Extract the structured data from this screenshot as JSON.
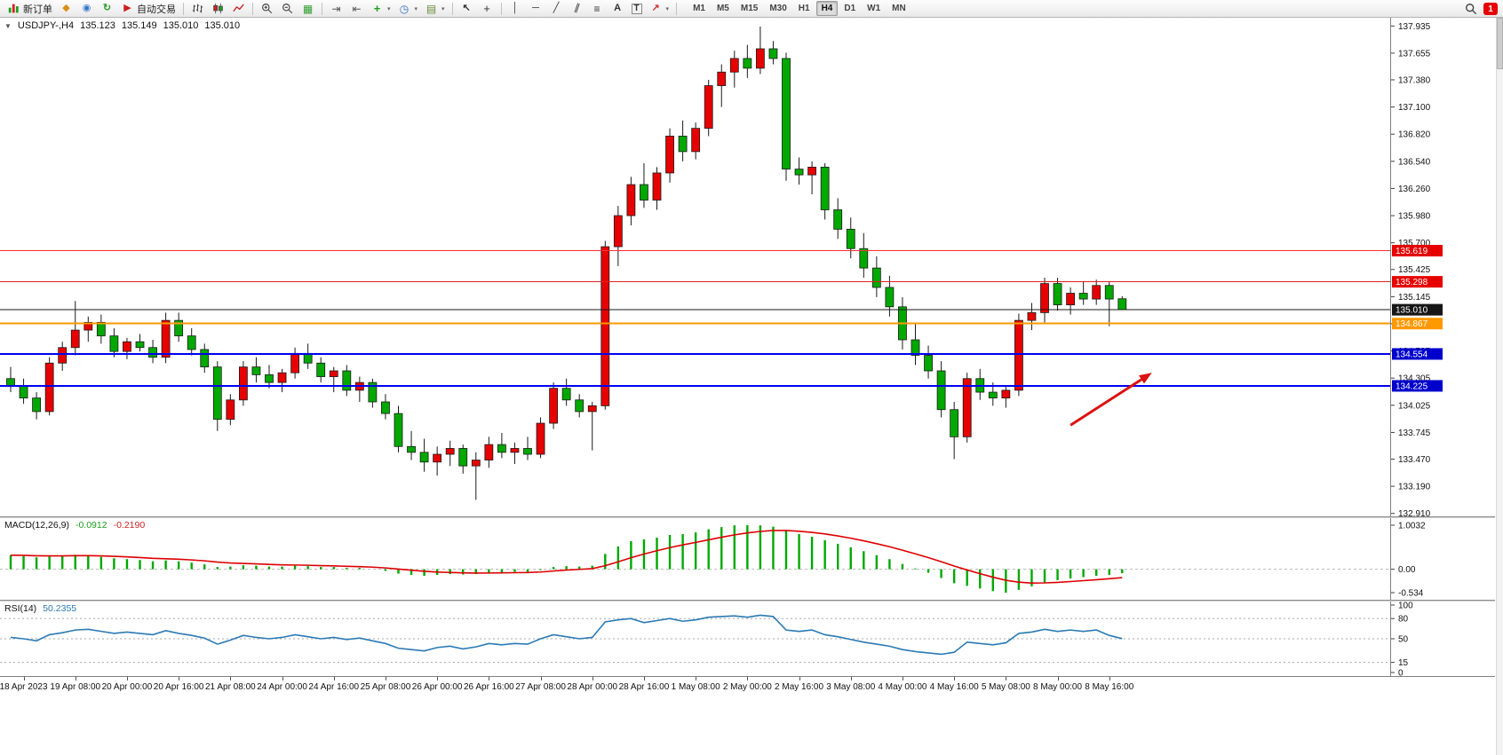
{
  "toolbar": {
    "items": [
      {
        "type": "button",
        "name": "new-order-button",
        "icon": "new-order-icon",
        "label": "新订单"
      },
      {
        "type": "button",
        "name": "metaeditor-button",
        "icon": "tools-icon"
      },
      {
        "type": "button",
        "name": "market-watch-button",
        "icon": "globe-icon"
      },
      {
        "type": "button",
        "name": "refresh-button",
        "icon": "refresh-icon"
      },
      {
        "type": "button",
        "name": "autotrading-button",
        "icon": "play-icon",
        "label": "自动交易"
      },
      {
        "type": "sep"
      },
      {
        "type": "button",
        "name": "bar-chart-button",
        "icon": "bars-icon"
      },
      {
        "type": "button",
        "name": "candle-chart-button",
        "icon": "candles-icon"
      },
      {
        "type": "button",
        "name": "line-chart-button",
        "icon": "linechart-icon"
      },
      {
        "type": "sep"
      },
      {
        "type": "button",
        "name": "zoom-in-button",
        "icon": "zoom-in-icon"
      },
      {
        "type": "button",
        "name": "zoom-out-button",
        "icon": "zoom-out-icon"
      },
      {
        "type": "button",
        "name": "tile-windows-button",
        "icon": "grid-icon"
      },
      {
        "type": "sep"
      },
      {
        "type": "button",
        "name": "autoscroll-button",
        "icon": "autoscroll-icon"
      },
      {
        "type": "button",
        "name": "chart-shift-button",
        "icon": "shift-icon"
      },
      {
        "type": "button",
        "name": "indicators-button",
        "icon": "plus-icon",
        "dropdown": true
      },
      {
        "type": "button",
        "name": "periods-button",
        "icon": "clock-icon",
        "dropdown": true
      },
      {
        "type": "button",
        "name": "templates-button",
        "icon": "template-icon",
        "dropdown": true
      },
      {
        "type": "sep"
      },
      {
        "type": "button",
        "name": "cursor-button",
        "icon": "cursor-icon"
      },
      {
        "type": "button",
        "name": "crosshair-button",
        "icon": "crosshair-icon"
      },
      {
        "type": "sep"
      },
      {
        "type": "button",
        "name": "vline-button",
        "icon": "vline-icon"
      },
      {
        "type": "button",
        "name": "hline-button",
        "icon": "hline-icon"
      },
      {
        "type": "button",
        "name": "trendline-button",
        "icon": "trendline-icon"
      },
      {
        "type": "button",
        "name": "channel-button",
        "icon": "channel-icon"
      },
      {
        "type": "button",
        "name": "fibonacci-button",
        "icon": "fibo-icon"
      },
      {
        "type": "button",
        "name": "text-button",
        "icon": "text-icon"
      },
      {
        "type": "button",
        "name": "label-button",
        "icon": "label-icon"
      },
      {
        "type": "button",
        "name": "arrows-button",
        "icon": "arrow-icon",
        "dropdown": true
      },
      {
        "type": "sep"
      }
    ],
    "timeframes": {
      "items": [
        "M1",
        "M5",
        "M15",
        "M30",
        "H1",
        "H4",
        "D1",
        "W1",
        "MN"
      ],
      "active": "H4"
    },
    "notification_badge": "1"
  },
  "chart": {
    "info": {
      "collapse_icon": "▼",
      "symbol_period": "USDJPY-,H4",
      "open": "135.123",
      "high": "135.149",
      "low": "135.010",
      "close": "135.010"
    }
  },
  "chart_data": {
    "type": "candlestick",
    "symbol": "USDJPY-",
    "period": "H4",
    "colors": {
      "bull": "#e60000",
      "bear": "#00a800",
      "outline": "#1a1a1a"
    },
    "price_axis": {
      "min": 132.88,
      "max": 138.02,
      "ticks": [
        "137.935",
        "137.655",
        "137.380",
        "137.100",
        "136.820",
        "136.540",
        "136.260",
        "135.980",
        "135.700",
        "135.425",
        "135.145",
        "134.865",
        "134.585",
        "134.305",
        "134.025",
        "133.745",
        "133.470",
        "133.190",
        "132.910"
      ]
    },
    "levels": [
      {
        "price": 135.619,
        "label": "135.619",
        "color": "#ff3030",
        "badge": "#e60000",
        "width": 1.2
      },
      {
        "price": 135.298,
        "label": "135.298",
        "color": "#e02020",
        "badge": "#e60000",
        "width": 1.2
      },
      {
        "price": 135.01,
        "label": "135.010",
        "color": "#1a1a1a",
        "badge": "#161616",
        "width": 1
      },
      {
        "price": 134.867,
        "label": "134.867",
        "color": "#ff9900",
        "badge": "#ff9900",
        "width": 2
      },
      {
        "price": 134.554,
        "label": "134.554",
        "color": "#0000ee",
        "badge": "#0000cc",
        "width": 2
      },
      {
        "price": 134.225,
        "label": "134.225",
        "color": "#0000ee",
        "badge": "#0000cc",
        "width": 2
      }
    ],
    "arrow": {
      "from_bar": 82,
      "from_price": 133.82,
      "to_bar": 88.3,
      "to_price": 134.36,
      "color": "#dd1111"
    },
    "time_labels": [
      "18 Apr 2023",
      "19 Apr 08:00",
      "20 Apr 00:00",
      "20 Apr 16:00",
      "21 Apr 08:00",
      "24 Apr 00:00",
      "24 Apr 16:00",
      "25 Apr 08:00",
      "26 Apr 00:00",
      "26 Apr 16:00",
      "27 Apr 08:00",
      "28 Apr 00:00",
      "28 Apr 16:00",
      "1 May 08:00",
      "2 May 00:00",
      "2 May 16:00",
      "3 May 08:00",
      "4 May 00:00",
      "4 May 16:00",
      "5 May 08:00",
      "8 May 00:00",
      "8 May 16:00"
    ],
    "first_label_bar": 1,
    "label_stride": 4,
    "candles": [
      [
        134.3,
        134.42,
        134.16,
        134.22
      ],
      [
        134.22,
        134.3,
        134.04,
        134.1
      ],
      [
        134.1,
        134.16,
        133.88,
        133.96
      ],
      [
        133.96,
        134.52,
        133.92,
        134.46
      ],
      [
        134.46,
        134.68,
        134.38,
        134.62
      ],
      [
        134.62,
        135.1,
        134.54,
        134.8
      ],
      [
        134.8,
        134.94,
        134.68,
        134.88
      ],
      [
        134.88,
        134.96,
        134.66,
        134.74
      ],
      [
        134.74,
        134.82,
        134.52,
        134.58
      ],
      [
        134.58,
        134.72,
        134.5,
        134.68
      ],
      [
        134.68,
        134.76,
        134.58,
        134.62
      ],
      [
        134.62,
        134.7,
        134.46,
        134.52
      ],
      [
        134.52,
        134.98,
        134.46,
        134.9
      ],
      [
        134.9,
        134.98,
        134.68,
        134.74
      ],
      [
        134.74,
        134.82,
        134.54,
        134.6
      ],
      [
        134.6,
        134.66,
        134.36,
        134.42
      ],
      [
        134.42,
        134.48,
        133.76,
        133.88
      ],
      [
        133.88,
        134.14,
        133.82,
        134.08
      ],
      [
        134.08,
        134.48,
        134.02,
        134.42
      ],
      [
        134.42,
        134.52,
        134.26,
        134.34
      ],
      [
        134.34,
        134.44,
        134.2,
        134.26
      ],
      [
        134.26,
        134.4,
        134.16,
        134.36
      ],
      [
        134.36,
        134.62,
        134.3,
        134.56
      ],
      [
        134.56,
        134.66,
        134.4,
        134.46
      ],
      [
        134.46,
        134.52,
        134.26,
        134.32
      ],
      [
        134.32,
        134.42,
        134.16,
        134.38
      ],
      [
        134.38,
        134.44,
        134.12,
        134.18
      ],
      [
        134.18,
        134.32,
        134.06,
        134.26
      ],
      [
        134.26,
        134.3,
        134.0,
        134.06
      ],
      [
        134.06,
        134.14,
        133.88,
        133.94
      ],
      [
        133.94,
        134.02,
        133.54,
        133.6
      ],
      [
        133.6,
        133.76,
        133.46,
        133.54
      ],
      [
        133.54,
        133.68,
        133.34,
        133.44
      ],
      [
        133.44,
        133.6,
        133.3,
        133.52
      ],
      [
        133.52,
        133.66,
        133.4,
        133.58
      ],
      [
        133.58,
        133.62,
        133.32,
        133.4
      ],
      [
        133.4,
        133.54,
        133.05,
        133.46
      ],
      [
        133.46,
        133.7,
        133.38,
        133.62
      ],
      [
        133.62,
        133.74,
        133.48,
        133.54
      ],
      [
        133.54,
        133.64,
        133.42,
        133.58
      ],
      [
        133.58,
        133.7,
        133.46,
        133.52
      ],
      [
        133.52,
        133.9,
        133.48,
        133.84
      ],
      [
        133.84,
        134.26,
        133.78,
        134.2
      ],
      [
        134.2,
        134.3,
        134.02,
        134.08
      ],
      [
        134.08,
        134.14,
        133.9,
        133.96
      ],
      [
        133.96,
        134.06,
        133.56,
        134.02
      ],
      [
        134.02,
        135.72,
        133.98,
        135.66
      ],
      [
        135.66,
        136.08,
        135.46,
        135.98
      ],
      [
        135.98,
        136.38,
        135.88,
        136.3
      ],
      [
        136.3,
        136.52,
        136.06,
        136.14
      ],
      [
        136.14,
        136.48,
        136.04,
        136.42
      ],
      [
        136.42,
        136.88,
        136.32,
        136.8
      ],
      [
        136.8,
        136.96,
        136.54,
        136.64
      ],
      [
        136.64,
        136.94,
        136.56,
        136.88
      ],
      [
        136.88,
        137.38,
        136.8,
        137.32
      ],
      [
        137.32,
        137.54,
        137.1,
        137.46
      ],
      [
        137.46,
        137.68,
        137.3,
        137.6
      ],
      [
        137.6,
        137.74,
        137.4,
        137.5
      ],
      [
        137.5,
        137.93,
        137.44,
        137.7
      ],
      [
        137.7,
        137.78,
        137.54,
        137.6
      ],
      [
        137.6,
        137.66,
        136.34,
        136.46
      ],
      [
        136.46,
        136.58,
        136.3,
        136.4
      ],
      [
        136.4,
        136.54,
        136.2,
        136.48
      ],
      [
        136.48,
        136.52,
        135.94,
        136.04
      ],
      [
        136.04,
        136.16,
        135.74,
        135.84
      ],
      [
        135.84,
        135.96,
        135.54,
        135.64
      ],
      [
        135.64,
        135.8,
        135.34,
        135.44
      ],
      [
        135.44,
        135.56,
        135.14,
        135.24
      ],
      [
        135.24,
        135.36,
        134.94,
        135.04
      ],
      [
        135.04,
        135.14,
        134.6,
        134.7
      ],
      [
        134.7,
        134.86,
        134.44,
        134.54
      ],
      [
        134.54,
        134.64,
        134.3,
        134.38
      ],
      [
        134.38,
        134.48,
        133.9,
        133.98
      ],
      [
        133.98,
        134.06,
        133.47,
        133.7
      ],
      [
        133.7,
        134.36,
        133.64,
        134.3
      ],
      [
        134.3,
        134.4,
        134.08,
        134.16
      ],
      [
        134.16,
        134.26,
        134.02,
        134.1
      ],
      [
        134.1,
        134.22,
        134.0,
        134.18
      ],
      [
        134.18,
        134.97,
        134.12,
        134.9
      ],
      [
        134.9,
        135.08,
        134.8,
        134.98
      ],
      [
        134.98,
        135.34,
        134.88,
        135.28
      ],
      [
        135.28,
        135.34,
        135.0,
        135.06
      ],
      [
        135.06,
        135.24,
        134.96,
        135.18
      ],
      [
        135.18,
        135.3,
        135.06,
        135.12
      ],
      [
        135.12,
        135.32,
        135.06,
        135.26
      ],
      [
        135.26,
        135.3,
        134.84,
        135.12
      ],
      [
        135.123,
        135.149,
        135.01,
        135.01
      ]
    ],
    "macd": {
      "title": "MACD(12,26,9)",
      "value_main": "-0.0912",
      "value_signal": "-0.2190",
      "hist_color": "#00a800",
      "signal_color": "#dd0000",
      "scale_max": 1.0032,
      "scale_min": -0.534,
      "scale_labels": [
        {
          "value": 1.0032,
          "text": "1.0032"
        },
        {
          "value": 0,
          "text": "0.00"
        },
        {
          "value": -0.534,
          "text": "-0.534"
        }
      ],
      "histogram": [
        0.32,
        0.3,
        0.27,
        0.29,
        0.31,
        0.33,
        0.31,
        0.28,
        0.25,
        0.23,
        0.21,
        0.18,
        0.2,
        0.18,
        0.15,
        0.11,
        0.05,
        0.06,
        0.09,
        0.08,
        0.06,
        0.06,
        0.08,
        0.07,
        0.05,
        0.05,
        0.03,
        0.03,
        0.0,
        -0.04,
        -0.1,
        -0.13,
        -0.15,
        -0.13,
        -0.11,
        -0.12,
        -0.11,
        -0.08,
        -0.07,
        -0.06,
        -0.06,
        -0.02,
        0.05,
        0.07,
        0.06,
        0.08,
        0.35,
        0.52,
        0.64,
        0.68,
        0.72,
        0.78,
        0.8,
        0.84,
        0.91,
        0.96,
        1.0,
        1.0032,
        1.0,
        0.97,
        0.88,
        0.8,
        0.74,
        0.66,
        0.58,
        0.5,
        0.41,
        0.32,
        0.23,
        0.12,
        0.02,
        -0.08,
        -0.2,
        -0.32,
        -0.38,
        -0.44,
        -0.5,
        -0.534,
        -0.47,
        -0.39,
        -0.3,
        -0.25,
        -0.21,
        -0.18,
        -0.15,
        -0.13,
        -0.0912
      ]
    },
    "rsi": {
      "title": "RSI(14)",
      "value": "50.2355",
      "color": "#2a7ab5",
      "levels": [
        80,
        50,
        15
      ],
      "scale_labels": [
        {
          "value": 100,
          "text": "100"
        },
        {
          "value": 80,
          "text": "80"
        },
        {
          "value": 50,
          "text": "50"
        },
        {
          "value": 15,
          "text": "15"
        },
        {
          "value": 0,
          "text": "0"
        }
      ],
      "values": [
        52,
        50,
        47,
        56,
        59,
        63,
        64,
        61,
        58,
        60,
        58,
        56,
        62,
        58,
        55,
        51,
        42,
        48,
        55,
        52,
        50,
        52,
        56,
        53,
        50,
        52,
        49,
        51,
        47,
        43,
        36,
        34,
        32,
        37,
        39,
        35,
        38,
        43,
        41,
        43,
        42,
        50,
        56,
        53,
        50,
        52,
        75,
        78,
        80,
        74,
        77,
        80,
        76,
        78,
        82,
        83,
        84,
        82,
        85,
        83,
        63,
        61,
        63,
        56,
        53,
        49,
        45,
        42,
        39,
        34,
        31,
        29,
        27,
        30,
        45,
        43,
        41,
        44,
        58,
        60,
        64,
        61,
        63,
        61,
        63,
        55,
        50.2355
      ]
    }
  }
}
